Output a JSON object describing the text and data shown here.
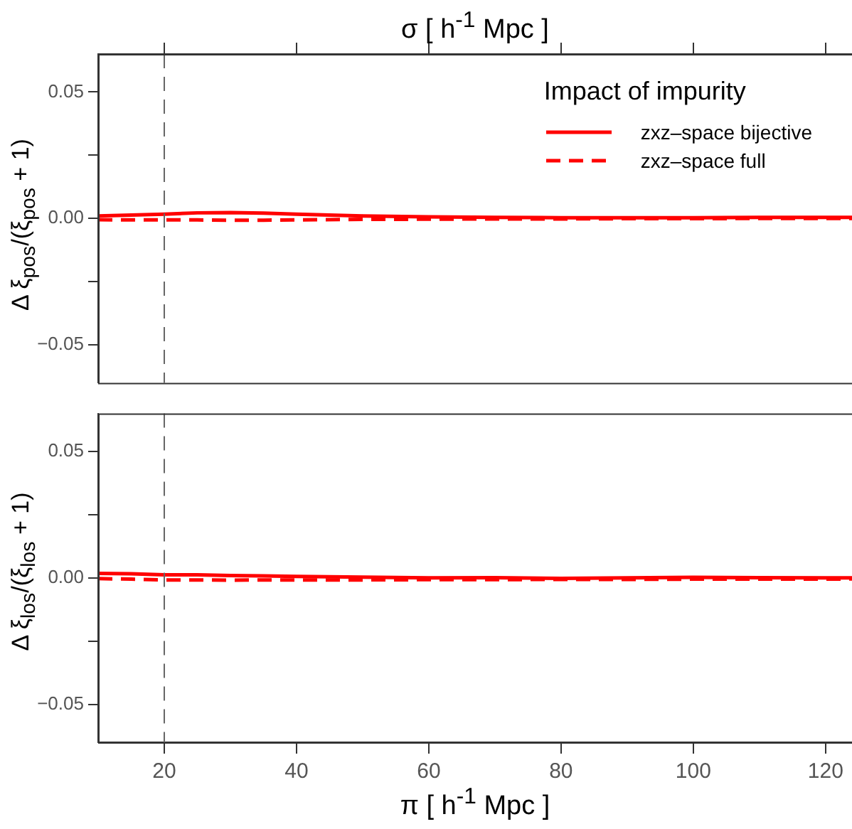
{
  "chart_data": [
    {
      "type": "line",
      "xlabel": "σ [ h$^{-1}$ Mpc ]",
      "ylabel": "Δ ξ$_{pos}$/(ξ$_{pos}$ + 1)",
      "legend_title": "Impact of impurity",
      "legend": "top right",
      "tick_labels": "y",
      "x": [
        10,
        15,
        20,
        25,
        30,
        35,
        40,
        50,
        60,
        70,
        80,
        90,
        100,
        110,
        120,
        124
      ],
      "series": [
        {
          "name": "zxz–space bijective",
          "color": "#ff0000",
          "line_style": "solid",
          "values": [
            0.001,
            0.0013,
            0.0017,
            0.0022,
            0.0023,
            0.0021,
            0.0017,
            0.001,
            0.0006,
            0.0004,
            0.0003,
            0.0003,
            0.0003,
            0.0004,
            0.0004,
            0.0004
          ]
        },
        {
          "name": "zxz–space full",
          "color": "#ff0000",
          "line_style": "dashed",
          "values": [
            -0.0005,
            -0.0006,
            -0.0006,
            -0.0006,
            -0.0007,
            -0.0007,
            -0.0006,
            -0.0004,
            -0.0003,
            -0.0002,
            -0.0002,
            -0.0001,
            -0.0001,
            0,
            0,
            0
          ]
        }
      ],
      "xlim": [
        10,
        124
      ],
      "xticks": [
        20,
        40,
        60,
        80,
        100,
        120
      ],
      "ylim": [
        -0.065,
        0.065
      ],
      "yticks": [
        {
          "value": -0.05,
          "label": "−0.05"
        },
        {
          "value": -0.025,
          "label": null
        },
        {
          "value": 0,
          "label": "0.00"
        },
        {
          "value": 0.025,
          "label": null
        },
        {
          "value": 0.05,
          "label": "0.05"
        }
      ],
      "ref_lines": [
        {
          "axis": "x",
          "value": 20,
          "color": "#666666",
          "line_style": "dashed"
        }
      ],
      "grid": false,
      "marker": "none"
    },
    {
      "type": "line",
      "xlabel": "π [ h$^{-1}$ Mpc ]",
      "ylabel": "Δ ξ$_{los}$/(ξ$_{los}$ + 1)",
      "x": [
        10,
        15,
        20,
        25,
        30,
        35,
        40,
        50,
        60,
        70,
        80,
        90,
        100,
        110,
        120,
        124
      ],
      "series": [
        {
          "color": "#ff0000",
          "line_style": "solid",
          "values": [
            0.0018,
            0.0016,
            0.0012,
            0.0012,
            0.0009,
            0.0008,
            0.0006,
            0.0003,
            0,
            0.0001,
            -0.0002,
            0,
            0.0002,
            0.0001,
            0,
            0
          ]
        },
        {
          "color": "#ff0000",
          "line_style": "dashed",
          "values": [
            -0.0003,
            -0.0005,
            -0.0008,
            -0.0008,
            -0.0009,
            -0.0008,
            -0.0008,
            -0.0008,
            -0.0007,
            -0.0007,
            -0.0006,
            -0.0006,
            -0.0005,
            -0.0005,
            -0.0005,
            -0.0004
          ]
        }
      ],
      "xlim": [
        10,
        124
      ],
      "xticks": [
        20,
        40,
        60,
        80,
        100,
        120
      ],
      "ylim": [
        -0.065,
        0.065
      ],
      "yticks": [
        {
          "value": -0.05,
          "label": "−0.05"
        },
        {
          "value": -0.025,
          "label": null
        },
        {
          "value": 0,
          "label": "0.00"
        },
        {
          "value": 0.025,
          "label": null
        },
        {
          "value": 0.05,
          "label": "0.05"
        }
      ],
      "ref_lines": [
        {
          "axis": "x",
          "value": 20,
          "color": "#666666",
          "line_style": "dashed"
        }
      ],
      "grid": false,
      "marker": "none"
    }
  ]
}
